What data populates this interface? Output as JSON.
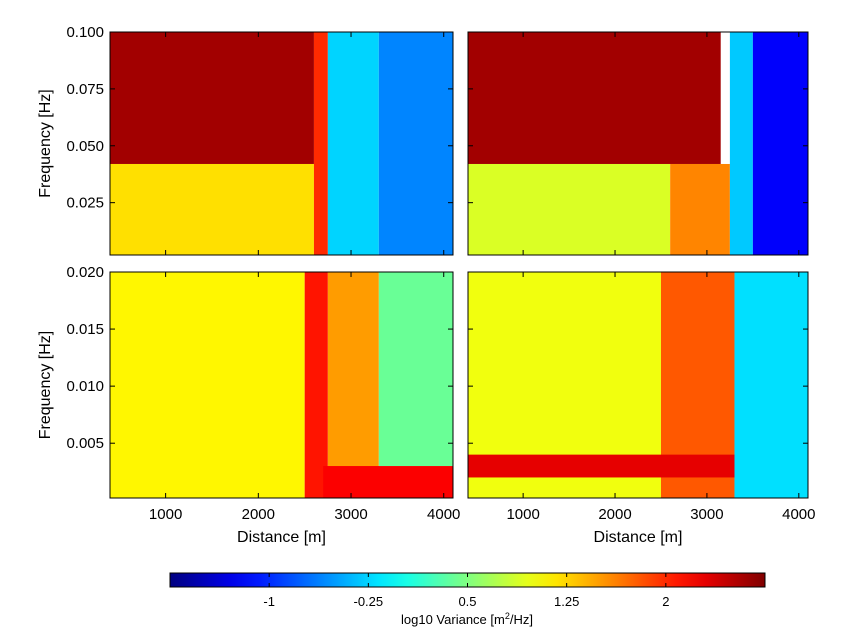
{
  "chart_data": [
    {
      "type": "heatmap",
      "panel": "top-left",
      "title": "",
      "xlabel": "",
      "ylabel": "Frequency [Hz]",
      "xlim": [
        400,
        4100
      ],
      "ylim": [
        0.002,
        0.1
      ],
      "xticks": [
        1000,
        2000,
        3000,
        4000
      ],
      "yticks": [
        0.025,
        0.05,
        0.075,
        0.1
      ],
      "ytick_labels": [
        "0.025",
        "0.050",
        "0.075",
        "0.100"
      ],
      "grid": false,
      "regions": [
        {
          "x_range": [
            400,
            2600
          ],
          "y_range": [
            0.042,
            0.1
          ],
          "log10_variance": 2.6
        },
        {
          "x_range": [
            400,
            2600
          ],
          "y_range": [
            0.002,
            0.042
          ],
          "log10_variance": 1.2
        },
        {
          "x_range": [
            2600,
            2750
          ],
          "y_range": [
            0.002,
            0.1
          ],
          "log10_variance": 2.0
        },
        {
          "x_range": [
            2750,
            3300
          ],
          "y_range": [
            0.002,
            0.1
          ],
          "log10_variance": -0.25
        },
        {
          "x_range": [
            3300,
            4100
          ],
          "y_range": [
            0.002,
            0.1
          ],
          "log10_variance": -0.6
        }
      ]
    },
    {
      "type": "heatmap",
      "panel": "top-right",
      "title": "",
      "xlabel": "",
      "ylabel": "",
      "xlim": [
        400,
        4100
      ],
      "ylim": [
        0.002,
        0.1
      ],
      "xticks": [
        1000,
        2000,
        3000,
        4000
      ],
      "yticks": [
        0.025,
        0.05,
        0.075,
        0.1
      ],
      "grid": false,
      "regions": [
        {
          "x_range": [
            400,
            3150
          ],
          "y_range": [
            0.042,
            0.1
          ],
          "log10_variance": 2.6
        },
        {
          "x_range": [
            400,
            2600
          ],
          "y_range": [
            0.002,
            0.042
          ],
          "log10_variance": 0.9
        },
        {
          "x_range": [
            2600,
            3250
          ],
          "y_range": [
            0.002,
            0.042
          ],
          "log10_variance": 1.6
        },
        {
          "x_range": [
            3250,
            3500
          ],
          "y_range": [
            0.002,
            0.1
          ],
          "log10_variance": -0.3
        },
        {
          "x_range": [
            3500,
            4100
          ],
          "y_range": [
            0.002,
            0.1
          ],
          "log10_variance": -1.2
        }
      ]
    },
    {
      "type": "heatmap",
      "panel": "bottom-left",
      "title": "",
      "xlabel": "Distance [m]",
      "ylabel": "Frequency [Hz]",
      "xlim": [
        400,
        4100
      ],
      "ylim": [
        0.0002,
        0.02
      ],
      "xticks": [
        1000,
        2000,
        3000,
        4000
      ],
      "yticks": [
        0.005,
        0.01,
        0.015,
        0.02
      ],
      "ytick_labels": [
        "0.005",
        "0.010",
        "0.015",
        "0.020"
      ],
      "grid": false,
      "regions": [
        {
          "x_range": [
            400,
            2500
          ],
          "y_range": [
            0.0002,
            0.02
          ],
          "log10_variance": 1.1
        },
        {
          "x_range": [
            2500,
            2750
          ],
          "y_range": [
            0.0002,
            0.02
          ],
          "log10_variance": 2.1
        },
        {
          "x_range": [
            2750,
            3300
          ],
          "y_range": [
            0.0002,
            0.02
          ],
          "log10_variance": 1.5
        },
        {
          "x_range": [
            3300,
            4100
          ],
          "y_range": [
            0.003,
            0.02
          ],
          "log10_variance": 0.4
        },
        {
          "x_range": [
            2700,
            4100
          ],
          "y_range": [
            0.0002,
            0.003
          ],
          "log10_variance": 2.2
        }
      ]
    },
    {
      "type": "heatmap",
      "panel": "bottom-right",
      "title": "",
      "xlabel": "Distance [m]",
      "ylabel": "",
      "xlim": [
        400,
        4100
      ],
      "ylim": [
        0.0002,
        0.02
      ],
      "xticks": [
        1000,
        2000,
        3000,
        4000
      ],
      "yticks": [
        0.005,
        0.01,
        0.015,
        0.02
      ],
      "grid": false,
      "regions": [
        {
          "x_range": [
            400,
            2500
          ],
          "y_range": [
            0.0002,
            0.02
          ],
          "log10_variance": 1.0
        },
        {
          "x_range": [
            2500,
            3300
          ],
          "y_range": [
            0.0002,
            0.02
          ],
          "log10_variance": 1.8
        },
        {
          "x_range": [
            3300,
            4100
          ],
          "y_range": [
            0.0002,
            0.02
          ],
          "log10_variance": -0.2
        },
        {
          "x_range": [
            400,
            3300
          ],
          "y_range": [
            0.002,
            0.004
          ],
          "log10_variance": 2.3
        }
      ]
    }
  ],
  "colorbar": {
    "label_prefix": "log10 Variance [m",
    "label_sup": "2",
    "label_suffix": "/Hz]",
    "range": [
      -1.75,
      2.75
    ],
    "ticks": [
      -1,
      -0.25,
      0.5,
      1.25,
      2
    ],
    "tick_labels": [
      "-1",
      "-0.25",
      "0.5",
      "1.25",
      "2"
    ],
    "colormap": "jet",
    "colors": [
      "#00008f",
      "#0000ff",
      "#00ffff",
      "#ffff00",
      "#ff0000",
      "#800000"
    ]
  }
}
